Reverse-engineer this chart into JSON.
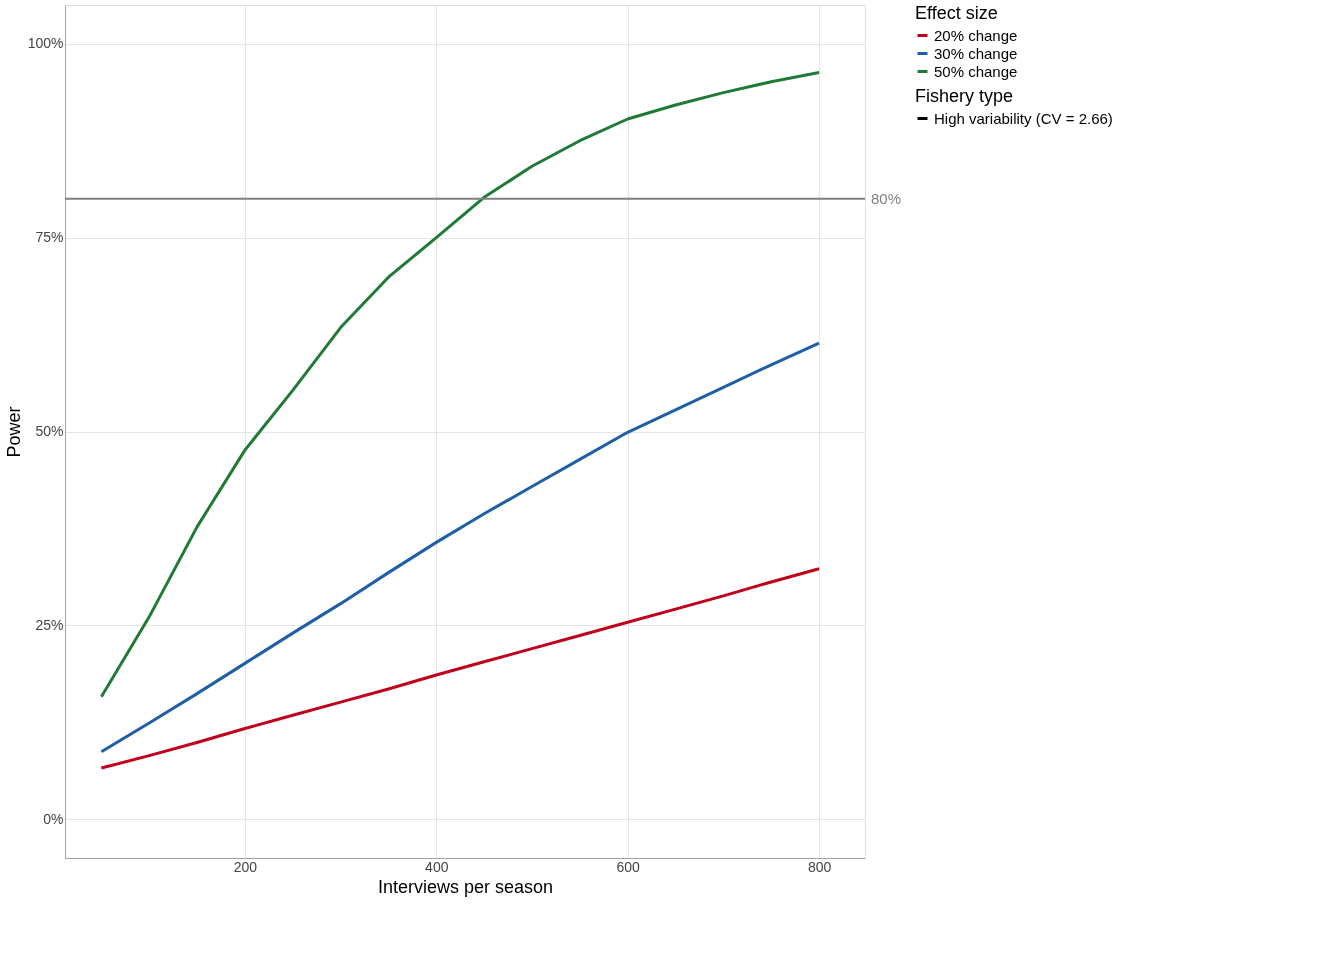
{
  "chart_data": {
    "type": "line",
    "xlabel": "Interviews per season",
    "ylabel": "Power",
    "legend_title": "Effect size",
    "legend": "right",
    "grid": true,
    "line_style": "solid",
    "x": [
      50,
      100,
      150,
      200,
      250,
      300,
      350,
      400,
      450,
      500,
      550,
      600,
      650,
      700,
      750,
      800
    ],
    "series": [
      {
        "name": "20% change",
        "color": "#c0001a",
        "values": [
          6.6,
          8.2,
          9.9,
          11.7,
          13.4,
          15.1,
          16.8,
          18.6,
          20.3,
          22.0,
          23.7,
          25.4,
          27.1,
          28.8,
          30.6,
          32.3
        ]
      },
      {
        "name": "30% change",
        "color": "#1f5fa8",
        "values": [
          8.7,
          12.4,
          16.2,
          20.1,
          24.0,
          27.8,
          31.8,
          35.7,
          39.4,
          42.9,
          46.4,
          49.9,
          52.8,
          55.7,
          58.6,
          61.4
        ]
      },
      {
        "name": "50% change",
        "color": "#1f7a35",
        "values": [
          15.8,
          26.1,
          37.7,
          47.6,
          55.3,
          63.4,
          69.9,
          75.0,
          80.2,
          84.2,
          87.5,
          90.3,
          92.1,
          93.7,
          95.1,
          96.3
        ]
      }
    ],
    "xlim": [
      12,
      848
    ],
    "xticks": [
      200,
      400,
      600,
      800
    ],
    "ylim": [
      -5,
      105
    ],
    "yticks": [
      {
        "value": 0,
        "label": "0%"
      },
      {
        "value": 25,
        "label": "25%"
      },
      {
        "value": 50,
        "label": "50%"
      },
      {
        "value": 75,
        "label": "75%"
      },
      {
        "value": 100,
        "label": "100%"
      }
    ],
    "ref_lines": [
      {
        "axis": "y",
        "value": 80,
        "label": "80%",
        "color": "#808080"
      }
    ],
    "annotations": [
      "Fishery type",
      "High variability (CV = 2.66)"
    ]
  }
}
